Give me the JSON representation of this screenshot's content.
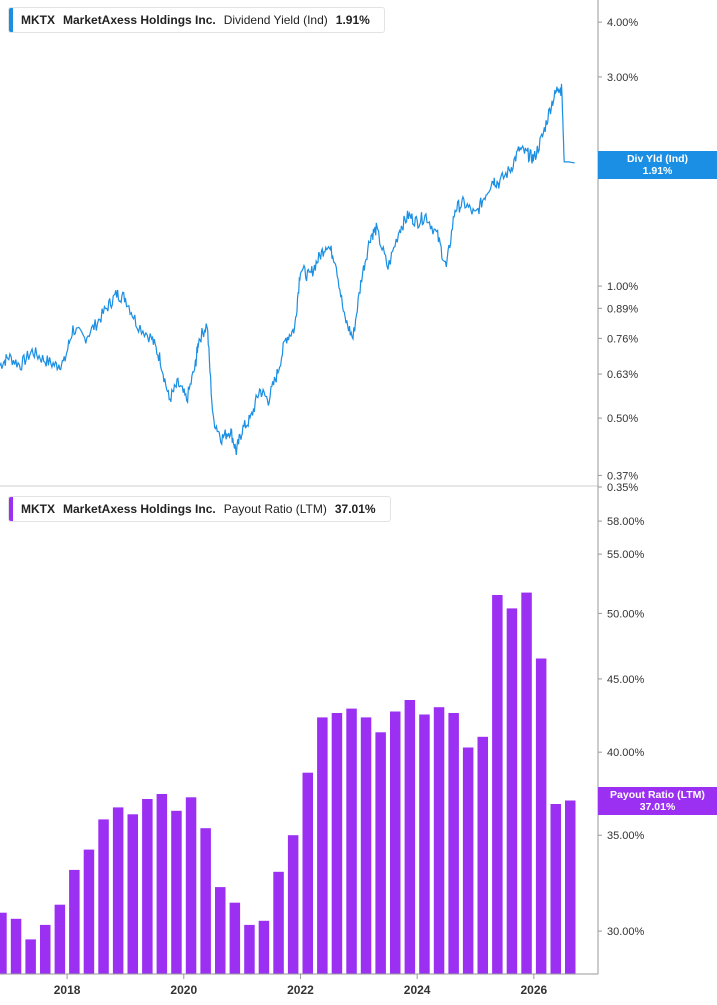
{
  "legend_top": {
    "ticker": "MKTX",
    "company": "MarketAxess Holdings Inc.",
    "metric": "Dividend Yield (Ind)",
    "value": "1.91%",
    "color": "#1a8fe3"
  },
  "legend_bottom": {
    "ticker": "MKTX",
    "company": "MarketAxess Holdings Inc.",
    "metric": "Payout Ratio (LTM)",
    "value": "37.01%",
    "color": "#9b30f2"
  },
  "badge_top": {
    "label": "Div Yld (Ind)",
    "value": "1.91%",
    "color": "#1a8fe3"
  },
  "badge_bottom": {
    "label": "Payout Ratio (LTM)",
    "value": "37.01%",
    "color": "#9b30f2"
  },
  "chart_data": [
    {
      "type": "line",
      "title": "",
      "series": [
        {
          "name": "Dividend Yield (Ind)",
          "x": [
            2016.85,
            2017.0,
            2017.2,
            2017.4,
            2017.6,
            2017.8,
            2017.95,
            2018.1,
            2018.3,
            2018.5,
            2018.7,
            2018.85,
            2019.0,
            2019.2,
            2019.45,
            2019.6,
            2019.75,
            2019.9,
            2020.05,
            2020.2,
            2020.25,
            2020.4,
            2020.5,
            2020.65,
            2020.8,
            2020.9,
            2021.0,
            2021.15,
            2021.3,
            2021.45,
            2021.6,
            2021.75,
            2021.9,
            2022.0,
            2022.15,
            2022.3,
            2022.45,
            2022.6,
            2022.75,
            2022.9,
            2023.05,
            2023.2,
            2023.3,
            2023.5,
            2023.7,
            2023.85,
            2024.0,
            2024.15,
            2024.35,
            2024.5,
            2024.65,
            2024.8,
            2025.0,
            2025.15,
            2025.3,
            2025.4,
            2025.6,
            2025.75,
            2025.9,
            2026.0,
            2026.15,
            2026.3,
            2026.42,
            2026.48,
            2026.52,
            2026.6,
            2026.7
          ],
          "y": [
            0.66,
            0.69,
            0.66,
            0.71,
            0.68,
            0.66,
            0.67,
            0.8,
            0.76,
            0.82,
            0.9,
            0.96,
            0.94,
            0.82,
            0.76,
            0.68,
            0.55,
            0.6,
            0.55,
            0.66,
            0.75,
            0.82,
            0.5,
            0.45,
            0.47,
            0.42,
            0.47,
            0.5,
            0.58,
            0.55,
            0.63,
            0.76,
            0.8,
            1.1,
            1.05,
            1.15,
            1.25,
            1.15,
            0.85,
            0.76,
            1.05,
            1.3,
            1.35,
            1.1,
            1.35,
            1.45,
            1.4,
            1.45,
            1.3,
            1.1,
            1.5,
            1.55,
            1.45,
            1.6,
            1.75,
            1.72,
            1.85,
            2.05,
            2.0,
            1.95,
            2.2,
            2.6,
            2.85,
            2.8,
            1.92,
            1.92,
            1.91
          ]
        }
      ],
      "yscale": "log",
      "ylim": [
        0.35,
        4.4
      ],
      "y_ticks": [
        "4.00%",
        "3.00%",
        "1.00%",
        "0.89%",
        "0.76%",
        "0.63%",
        "0.50%",
        "0.37%"
      ],
      "y_tick_values": [
        4.0,
        3.0,
        1.0,
        0.89,
        0.76,
        0.63,
        0.5,
        0.37
      ],
      "xlim": [
        2016.85,
        2027.1
      ]
    },
    {
      "type": "bar",
      "title": "",
      "series": [
        {
          "name": "Payout Ratio (LTM)",
          "x": [
            2016.875,
            2017.125,
            2017.375,
            2017.625,
            2017.875,
            2018.125,
            2018.375,
            2018.625,
            2018.875,
            2019.125,
            2019.375,
            2019.625,
            2019.875,
            2020.125,
            2020.375,
            2020.625,
            2020.875,
            2021.125,
            2021.375,
            2021.625,
            2021.875,
            2022.125,
            2022.375,
            2022.625,
            2022.875,
            2023.125,
            2023.375,
            2023.625,
            2023.875,
            2024.125,
            2024.375,
            2024.625,
            2024.875,
            2025.125,
            2025.375,
            2025.625,
            2025.875,
            2026.125,
            2026.375,
            2026.625
          ],
          "values": [
            30.9,
            30.6,
            29.6,
            30.3,
            31.3,
            33.1,
            34.2,
            35.9,
            36.6,
            36.2,
            37.1,
            37.4,
            36.4,
            37.2,
            35.4,
            32.2,
            31.4,
            30.3,
            30.5,
            33.0,
            35.0,
            38.7,
            42.3,
            42.6,
            42.9,
            42.3,
            41.3,
            42.7,
            43.5,
            42.5,
            43.0,
            42.6,
            40.3,
            41.0,
            51.5,
            50.4,
            51.7,
            46.5,
            36.8,
            37.01
          ]
        }
      ],
      "yscale": "log",
      "ylim": [
        28.0,
        60.0
      ],
      "y_ticks": [
        "0.35%",
        "58.00%",
        "55.00%",
        "50.00%",
        "45.00%",
        "40.00%",
        "35.00%",
        "30.00%"
      ],
      "y_tick_values": [
        null,
        58.0,
        55.0,
        50.0,
        45.0,
        40.0,
        35.0,
        30.0
      ],
      "x_ticks": [
        "2018",
        "2020",
        "2022",
        "2024",
        "2026"
      ],
      "x_tick_values": [
        2018.0,
        2020.0,
        2022.0,
        2024.0,
        2026.0
      ],
      "xlim": [
        2016.85,
        2027.1
      ]
    }
  ]
}
